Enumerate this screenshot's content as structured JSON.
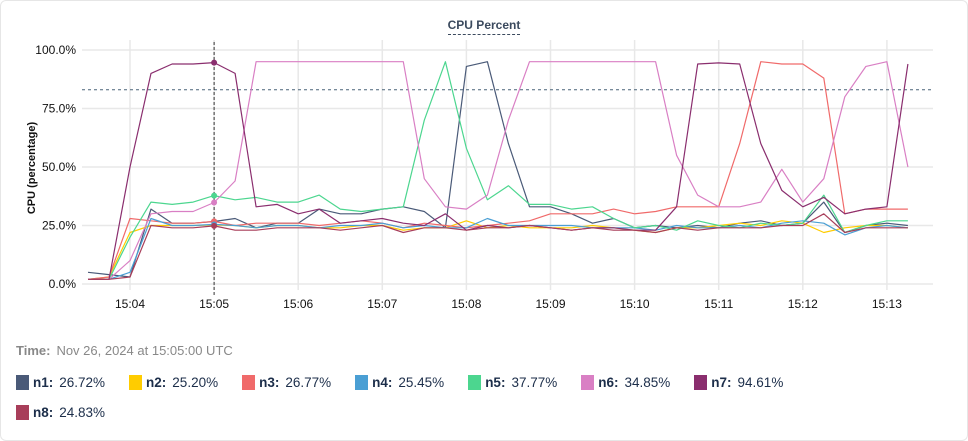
{
  "chart_data": {
    "type": "line",
    "title": "CPU Percent",
    "ylabel": "CPU (percentage)",
    "xlabel": "",
    "ylim": [
      0,
      100
    ],
    "yticks": [
      "0.0%",
      "25.0%",
      "50.0%",
      "75.0%",
      "100.0%"
    ],
    "ytick_values": [
      0,
      25,
      50,
      75,
      100
    ],
    "xticks": [
      "15:04",
      "15:05",
      "15:06",
      "15:07",
      "15:08",
      "15:09",
      "15:10",
      "15:11",
      "15:12",
      "15:13"
    ],
    "grid": true,
    "reference_line": 83,
    "hover_time": "15:05:00",
    "x": [
      "15:03:30",
      "15:03:45",
      "15:04:00",
      "15:04:15",
      "15:04:30",
      "15:04:45",
      "15:05:00",
      "15:05:15",
      "15:05:30",
      "15:05:45",
      "15:06:00",
      "15:06:15",
      "15:06:30",
      "15:06:45",
      "15:07:00",
      "15:07:15",
      "15:07:30",
      "15:07:45",
      "15:08:00",
      "15:08:15",
      "15:08:30",
      "15:08:45",
      "15:09:00",
      "15:09:15",
      "15:09:30",
      "15:09:45",
      "15:10:00",
      "15:10:15",
      "15:10:30",
      "15:10:45",
      "15:11:00",
      "15:11:15",
      "15:11:30",
      "15:11:45",
      "15:12:00",
      "15:12:15",
      "15:12:30",
      "15:12:45",
      "15:13:00",
      "15:13:15"
    ],
    "series": [
      {
        "name": "n1",
        "color": "#4a5a78",
        "values": [
          5,
          4,
          3,
          32,
          26,
          26,
          26.72,
          28,
          24,
          26,
          26,
          32,
          30,
          30,
          32,
          33,
          31,
          24,
          93,
          95,
          60,
          33,
          33,
          30,
          26,
          28,
          24,
          25,
          24,
          25,
          24,
          26,
          27,
          25,
          26,
          35,
          22,
          25,
          26,
          25
        ]
      },
      {
        "name": "n2",
        "color": "#ffcc00",
        "values": [
          2,
          3,
          22,
          25,
          25,
          25,
          25.2,
          25,
          24,
          25,
          25,
          24,
          24,
          25,
          25,
          23,
          24,
          24,
          27,
          24,
          25,
          24,
          24,
          24,
          25,
          24,
          23,
          22,
          24,
          24,
          25,
          26,
          25,
          27,
          26,
          22,
          24,
          25,
          25,
          24
        ]
      },
      {
        "name": "n3",
        "color": "#f06a6a",
        "values": [
          2,
          3,
          28,
          27,
          26,
          26,
          26.77,
          25,
          26,
          26,
          26,
          25,
          26,
          27,
          26,
          24,
          26,
          25,
          24,
          25,
          26,
          27,
          30,
          30,
          30,
          32,
          30,
          31,
          33,
          33,
          33,
          60,
          95,
          94,
          94,
          88,
          30,
          32,
          32,
          32
        ]
      },
      {
        "name": "n4",
        "color": "#4a9fd4",
        "values": [
          2,
          2,
          5,
          28,
          25,
          25,
          25.45,
          25,
          24,
          25,
          25,
          24,
          25,
          25,
          26,
          24,
          25,
          24,
          24,
          28,
          25,
          25,
          25,
          25,
          24,
          24,
          24,
          23,
          25,
          24,
          24,
          25,
          24,
          26,
          27,
          26,
          21,
          24,
          25,
          24
        ]
      },
      {
        "name": "n5",
        "color": "#4cd68f",
        "values": [
          2,
          2,
          20,
          35,
          34,
          35,
          37.77,
          36,
          37,
          35,
          35,
          38,
          32,
          31,
          32,
          33,
          70,
          95,
          58,
          36,
          42,
          34,
          34,
          32,
          33,
          28,
          24,
          25,
          23,
          27,
          25,
          24,
          26,
          25,
          26,
          38,
          22,
          25,
          27,
          27
        ]
      },
      {
        "name": "n6",
        "color": "#d97fc4",
        "values": [
          2,
          2,
          10,
          30,
          31,
          31,
          34.85,
          44,
          95,
          95,
          95,
          95,
          95,
          95,
          95,
          95,
          45,
          33,
          32,
          38,
          70,
          95,
          95,
          95,
          95,
          95,
          95,
          95,
          55,
          38,
          33,
          33,
          35,
          49,
          35,
          45,
          80,
          93,
          95,
          50
        ]
      },
      {
        "name": "n7",
        "color": "#8a2e6e",
        "values": [
          2,
          2,
          50,
          90,
          94,
          94,
          94.61,
          90,
          33,
          34,
          30,
          32,
          26,
          27,
          28,
          26,
          25,
          30,
          23,
          25,
          24,
          25,
          24,
          23,
          24,
          24,
          23,
          23,
          33,
          94,
          94.5,
          94,
          60,
          40,
          33,
          37,
          30,
          32,
          33,
          94
        ]
      },
      {
        "name": "n8",
        "color": "#a83e5a",
        "values": [
          2,
          2,
          3,
          25,
          24,
          24,
          24.83,
          23,
          23,
          24,
          24,
          24,
          23,
          24,
          25,
          22,
          24,
          24,
          23,
          24,
          24,
          25,
          24,
          23,
          24,
          23,
          23,
          22,
          24,
          23,
          24,
          24,
          24,
          25,
          25,
          30,
          22,
          24,
          24,
          24
        ]
      }
    ]
  },
  "tooltip": {
    "time_label": "Time:",
    "time_value": "Nov 26, 2024 at 15:05:00 UTC"
  },
  "legend": [
    {
      "name": "n1:",
      "value": "26.72%",
      "color": "#4a5a78"
    },
    {
      "name": "n2:",
      "value": "25.20%",
      "color": "#ffcc00"
    },
    {
      "name": "n3:",
      "value": "26.77%",
      "color": "#f06a6a"
    },
    {
      "name": "n4:",
      "value": "25.45%",
      "color": "#4a9fd4"
    },
    {
      "name": "n5:",
      "value": "37.77%",
      "color": "#4cd68f"
    },
    {
      "name": "n6:",
      "value": "34.85%",
      "color": "#d97fc4"
    },
    {
      "name": "n7:",
      "value": "94.61%",
      "color": "#8a2e6e"
    },
    {
      "name": "n8:",
      "value": "24.83%",
      "color": "#a83e5a"
    }
  ]
}
